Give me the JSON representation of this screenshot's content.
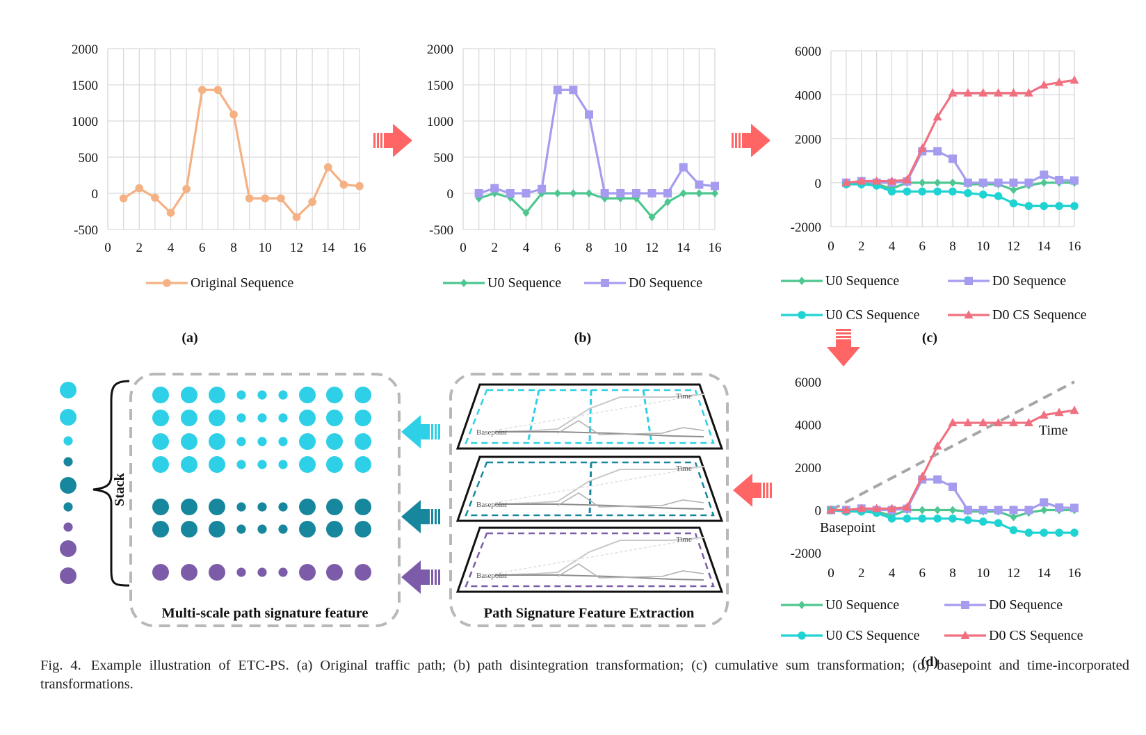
{
  "caption": {
    "lead": "Fig. 4.",
    "text": "Example illustration of ETC-PS. (a) Original traffic path; (b) path disintegration transformation; (c) cumulative sum transformation; (d) basepoint and time-incorporated transformations."
  },
  "labels": {
    "a": "(a)",
    "b": "(b)",
    "c": "(c)",
    "d": "(d)",
    "multiscale": "Multi-scale path signature feature",
    "extraction": "Path Signature Feature Extraction",
    "stack": "Stack",
    "mini_time": "Time",
    "mini_basepoint": "Basepoint"
  },
  "colors": {
    "original": "#F4B183",
    "u0": "#4DC68F",
    "d0": "#A59CF0",
    "u0cs": "#1FD3D3",
    "d0cs": "#F07080",
    "arrow": "#FF6565",
    "level1": "#2DD0E6",
    "level2": "#17879E",
    "level3": "#7C5CA8",
    "grid": "#D9D9D9",
    "dashed_box": "#B8B8B8"
  },
  "chart_data": [
    {
      "id": "a",
      "type": "line",
      "xlim": [
        0,
        16
      ],
      "ylim": [
        -500,
        2000
      ],
      "xticks": [
        0,
        2,
        4,
        6,
        8,
        10,
        12,
        14,
        16
      ],
      "yticks": [
        -500,
        0,
        500,
        1000,
        1500,
        2000
      ],
      "grid": true,
      "legend": "bottom",
      "series": [
        {
          "name": "Original Sequence",
          "color": "#F4B183",
          "marker": "circle",
          "x": [
            1,
            2,
            3,
            4,
            5,
            6,
            7,
            8,
            9,
            10,
            11,
            12,
            13,
            14,
            15,
            16
          ],
          "y": [
            -70,
            70,
            -60,
            -270,
            60,
            1430,
            1430,
            1090,
            -70,
            -70,
            -70,
            -330,
            -120,
            360,
            120,
            100
          ]
        }
      ]
    },
    {
      "id": "b",
      "type": "line",
      "xlim": [
        0,
        16
      ],
      "ylim": [
        -500,
        2000
      ],
      "xticks": [
        0,
        2,
        4,
        6,
        8,
        10,
        12,
        14,
        16
      ],
      "yticks": [
        -500,
        0,
        500,
        1000,
        1500,
        2000
      ],
      "grid": true,
      "legend": "bottom",
      "series": [
        {
          "name": "U0 Sequence",
          "color": "#4DC68F",
          "marker": "diamond",
          "x": [
            1,
            2,
            3,
            4,
            5,
            6,
            7,
            8,
            9,
            10,
            11,
            12,
            13,
            14,
            15,
            16
          ],
          "y": [
            -70,
            0,
            -60,
            -270,
            0,
            0,
            0,
            0,
            -70,
            -70,
            -70,
            -330,
            -120,
            0,
            0,
            0
          ]
        },
        {
          "name": "D0 Sequence",
          "color": "#A59CF0",
          "marker": "square",
          "x": [
            1,
            2,
            3,
            4,
            5,
            6,
            7,
            8,
            9,
            10,
            11,
            12,
            13,
            14,
            15,
            16
          ],
          "y": [
            0,
            70,
            0,
            0,
            60,
            1430,
            1430,
            1090,
            0,
            0,
            0,
            0,
            0,
            360,
            120,
            100
          ]
        }
      ]
    },
    {
      "id": "c",
      "type": "line",
      "xlim": [
        0,
        16
      ],
      "ylim": [
        -2000,
        6000
      ],
      "xticks": [
        0,
        2,
        4,
        6,
        8,
        10,
        12,
        14,
        16
      ],
      "yticks": [
        -2000,
        0,
        2000,
        4000,
        6000
      ],
      "grid": true,
      "legend": "bottom",
      "series": [
        {
          "name": "U0 Sequence",
          "color": "#4DC68F",
          "marker": "diamond",
          "x": [
            1,
            2,
            3,
            4,
            5,
            6,
            7,
            8,
            9,
            10,
            11,
            12,
            13,
            14,
            15,
            16
          ],
          "y": [
            -70,
            0,
            -60,
            -270,
            0,
            0,
            0,
            0,
            -70,
            -70,
            -70,
            -330,
            -120,
            0,
            0,
            0
          ]
        },
        {
          "name": "D0 Sequence",
          "color": "#A59CF0",
          "marker": "square",
          "x": [
            1,
            2,
            3,
            4,
            5,
            6,
            7,
            8,
            9,
            10,
            11,
            12,
            13,
            14,
            15,
            16
          ],
          "y": [
            0,
            70,
            0,
            0,
            60,
            1430,
            1430,
            1090,
            0,
            0,
            0,
            0,
            0,
            360,
            120,
            100
          ]
        },
        {
          "name": "U0 CS Sequence",
          "color": "#1FD3D3",
          "marker": "circle",
          "x": [
            1,
            2,
            3,
            4,
            5,
            6,
            7,
            8,
            9,
            10,
            11,
            12,
            13,
            14,
            15,
            16
          ],
          "y": [
            -70,
            -70,
            -130,
            -400,
            -400,
            -400,
            -400,
            -400,
            -470,
            -540,
            -610,
            -940,
            -1060,
            -1060,
            -1060,
            -1060
          ]
        },
        {
          "name": "D0 CS Sequence",
          "color": "#F07080",
          "marker": "triangle",
          "x": [
            1,
            2,
            3,
            4,
            5,
            6,
            7,
            8,
            9,
            10,
            11,
            12,
            13,
            14,
            15,
            16
          ],
          "y": [
            0,
            70,
            70,
            70,
            130,
            1560,
            2990,
            4080,
            4080,
            4080,
            4080,
            4080,
            4080,
            4440,
            4560,
            4660
          ]
        }
      ]
    },
    {
      "id": "d",
      "type": "line",
      "xlim": [
        0,
        16
      ],
      "ylim": [
        -2000,
        6000
      ],
      "xticks": [
        0,
        2,
        4,
        6,
        8,
        10,
        12,
        14,
        16
      ],
      "yticks": [
        -2000,
        0,
        2000,
        4000,
        6000
      ],
      "grid": false,
      "legend": "bottom",
      "annotations": [
        {
          "text": "Time"
        },
        {
          "text": "Basepoint"
        }
      ],
      "guide": {
        "style": "dashed",
        "color": "#A6A6A6",
        "from": [
          0,
          0
        ],
        "to": [
          16,
          6000
        ]
      },
      "series": [
        {
          "name": "U0 Sequence",
          "color": "#4DC68F",
          "marker": "diamond",
          "x": [
            0,
            1,
            2,
            3,
            4,
            5,
            6,
            7,
            8,
            9,
            10,
            11,
            12,
            13,
            14,
            15,
            16
          ],
          "y": [
            0,
            -70,
            0,
            -60,
            -270,
            0,
            0,
            0,
            0,
            -70,
            -70,
            -70,
            -330,
            -120,
            0,
            0,
            0
          ]
        },
        {
          "name": "D0 Sequence",
          "color": "#A59CF0",
          "marker": "square",
          "x": [
            0,
            1,
            2,
            3,
            4,
            5,
            6,
            7,
            8,
            9,
            10,
            11,
            12,
            13,
            14,
            15,
            16
          ],
          "y": [
            0,
            0,
            70,
            0,
            0,
            60,
            1430,
            1430,
            1090,
            0,
            0,
            0,
            0,
            0,
            360,
            120,
            100
          ]
        },
        {
          "name": "U0 CS Sequence",
          "color": "#1FD3D3",
          "marker": "circle",
          "x": [
            0,
            1,
            2,
            3,
            4,
            5,
            6,
            7,
            8,
            9,
            10,
            11,
            12,
            13,
            14,
            15,
            16
          ],
          "y": [
            0,
            -70,
            -70,
            -130,
            -400,
            -400,
            -400,
            -400,
            -400,
            -470,
            -540,
            -610,
            -940,
            -1060,
            -1060,
            -1060,
            -1060
          ]
        },
        {
          "name": "D0 CS Sequence",
          "color": "#F07080",
          "marker": "triangle",
          "x": [
            0,
            1,
            2,
            3,
            4,
            5,
            6,
            7,
            8,
            9,
            10,
            11,
            12,
            13,
            14,
            15,
            16
          ],
          "y": [
            0,
            0,
            70,
            70,
            70,
            130,
            1560,
            2990,
            4080,
            4080,
            4080,
            4080,
            4080,
            4080,
            4440,
            4560,
            4660
          ]
        }
      ]
    }
  ],
  "signature_feature": {
    "left_column": [
      {
        "size": 1.0,
        "level": 1
      },
      {
        "size": 1.0,
        "level": 1
      },
      {
        "size": 0.55,
        "level": 1
      },
      {
        "size": 0.55,
        "level": 2
      },
      {
        "size": 1.0,
        "level": 2
      },
      {
        "size": 0.55,
        "level": 2
      },
      {
        "size": 0.55,
        "level": 3
      },
      {
        "size": 1.0,
        "level": 3
      },
      {
        "size": 1.0,
        "level": 3
      }
    ],
    "grid_rows": [
      {
        "level": 1,
        "sizes": [
          1,
          1,
          1,
          0.55,
          0.55,
          0.55,
          1,
          1,
          1
        ]
      },
      {
        "level": 1,
        "sizes": [
          1,
          1,
          1,
          0.55,
          0.55,
          0.55,
          1,
          1,
          1
        ]
      },
      {
        "level": 1,
        "sizes": [
          1,
          1,
          1,
          0.55,
          0.55,
          0.55,
          1,
          1,
          1
        ]
      },
      {
        "level": 1,
        "sizes": [
          1,
          1,
          1,
          0.55,
          0.55,
          0.55,
          1,
          1,
          1
        ]
      },
      {
        "level": 2,
        "sizes": [
          1,
          1,
          1,
          0.55,
          0.55,
          0.55,
          1,
          1,
          1
        ]
      },
      {
        "level": 2,
        "sizes": [
          1,
          1,
          1,
          0.55,
          0.55,
          0.55,
          1,
          1,
          1
        ]
      },
      {
        "level": 3,
        "sizes": [
          1,
          1,
          1,
          0.55,
          0.55,
          0.55,
          1,
          1,
          1
        ]
      }
    ]
  },
  "extraction_layers": [
    {
      "level": 1,
      "windows": 4
    },
    {
      "level": 2,
      "windows": 2
    },
    {
      "level": 3,
      "windows": 1
    }
  ]
}
